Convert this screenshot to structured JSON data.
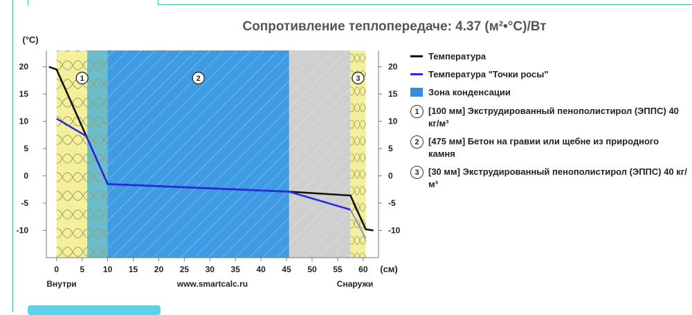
{
  "chart_data": {
    "type": "line",
    "title": "Сопротивление теплопередаче: 4.37 (м²•°C)/Вт",
    "y_unit_label": "(°С)",
    "x_unit_label": "(см)",
    "x_left_label": "Внутри",
    "x_center_label": "www.smartcalc.ru",
    "x_right_label": "Снаружи",
    "xlim": [
      -2,
      63
    ],
    "ylim": [
      -15,
      23
    ],
    "x_ticks": [
      "0",
      "5",
      "10",
      "15",
      "20",
      "25",
      "30",
      "35",
      "40",
      "45",
      "50",
      "55",
      "60"
    ],
    "y_ticks": [
      "20",
      "15",
      "10",
      "5",
      "0",
      "-5",
      "-10"
    ],
    "zones": [
      {
        "number": "1",
        "x_start": 0,
        "x_end": 10,
        "condensation_start": 6,
        "color": "#f4ef9a",
        "condensation_color": "#6cbdcc"
      },
      {
        "number": "2",
        "x_start": 10,
        "x_end": 45.5,
        "condensation_start": 10,
        "color": "#3f9be2",
        "condensation_color": "#3f9be2"
      },
      {
        "number": "",
        "x_start": 45.5,
        "x_end": 57.5,
        "condensation_start": null,
        "color": "#cfcfcf",
        "condensation_color": ""
      },
      {
        "number": "3",
        "x_start": 57.5,
        "x_end": 60.5,
        "condensation_start": null,
        "color": "#f4ef9a",
        "condensation_color": ""
      }
    ],
    "series": [
      {
        "name": "Температура",
        "color": "#111111",
        "x": [
          -1.5,
          0,
          10,
          45.5,
          57.5,
          60.5,
          62
        ],
        "y": [
          20,
          19.5,
          -1.5,
          -2.9,
          -3.6,
          -9.8,
          -10
        ]
      },
      {
        "name": "Температура \"Точки росы\"",
        "color": "#2a2ae0",
        "x": [
          0,
          5.8,
          10,
          45.5,
          57.5
        ],
        "y": [
          10.5,
          7.3,
          -1.5,
          -2.9,
          -6.2
        ]
      }
    ],
    "dew_extension": {
      "color": "#8a96d8",
      "x": [
        57.5,
        60.5
      ],
      "y": [
        -6.2,
        -11.5
      ]
    },
    "legend": {
      "temp": "Температура",
      "dew": "Температура \"Точки росы\"",
      "zone": "Зона конденсации",
      "zone_color": "#2f8fe0",
      "materials": [
        {
          "number": "1",
          "text": "[100 мм] Экструдированный пенополистирол (ЭППС) 40 кг/м³"
        },
        {
          "number": "2",
          "text": "[475 мм] Бетон на гравии или щебне из природного камня"
        },
        {
          "number": "3",
          "text": "[30 мм] Экструдированный пенополистирол (ЭППС) 40 кг/м³"
        }
      ]
    }
  }
}
